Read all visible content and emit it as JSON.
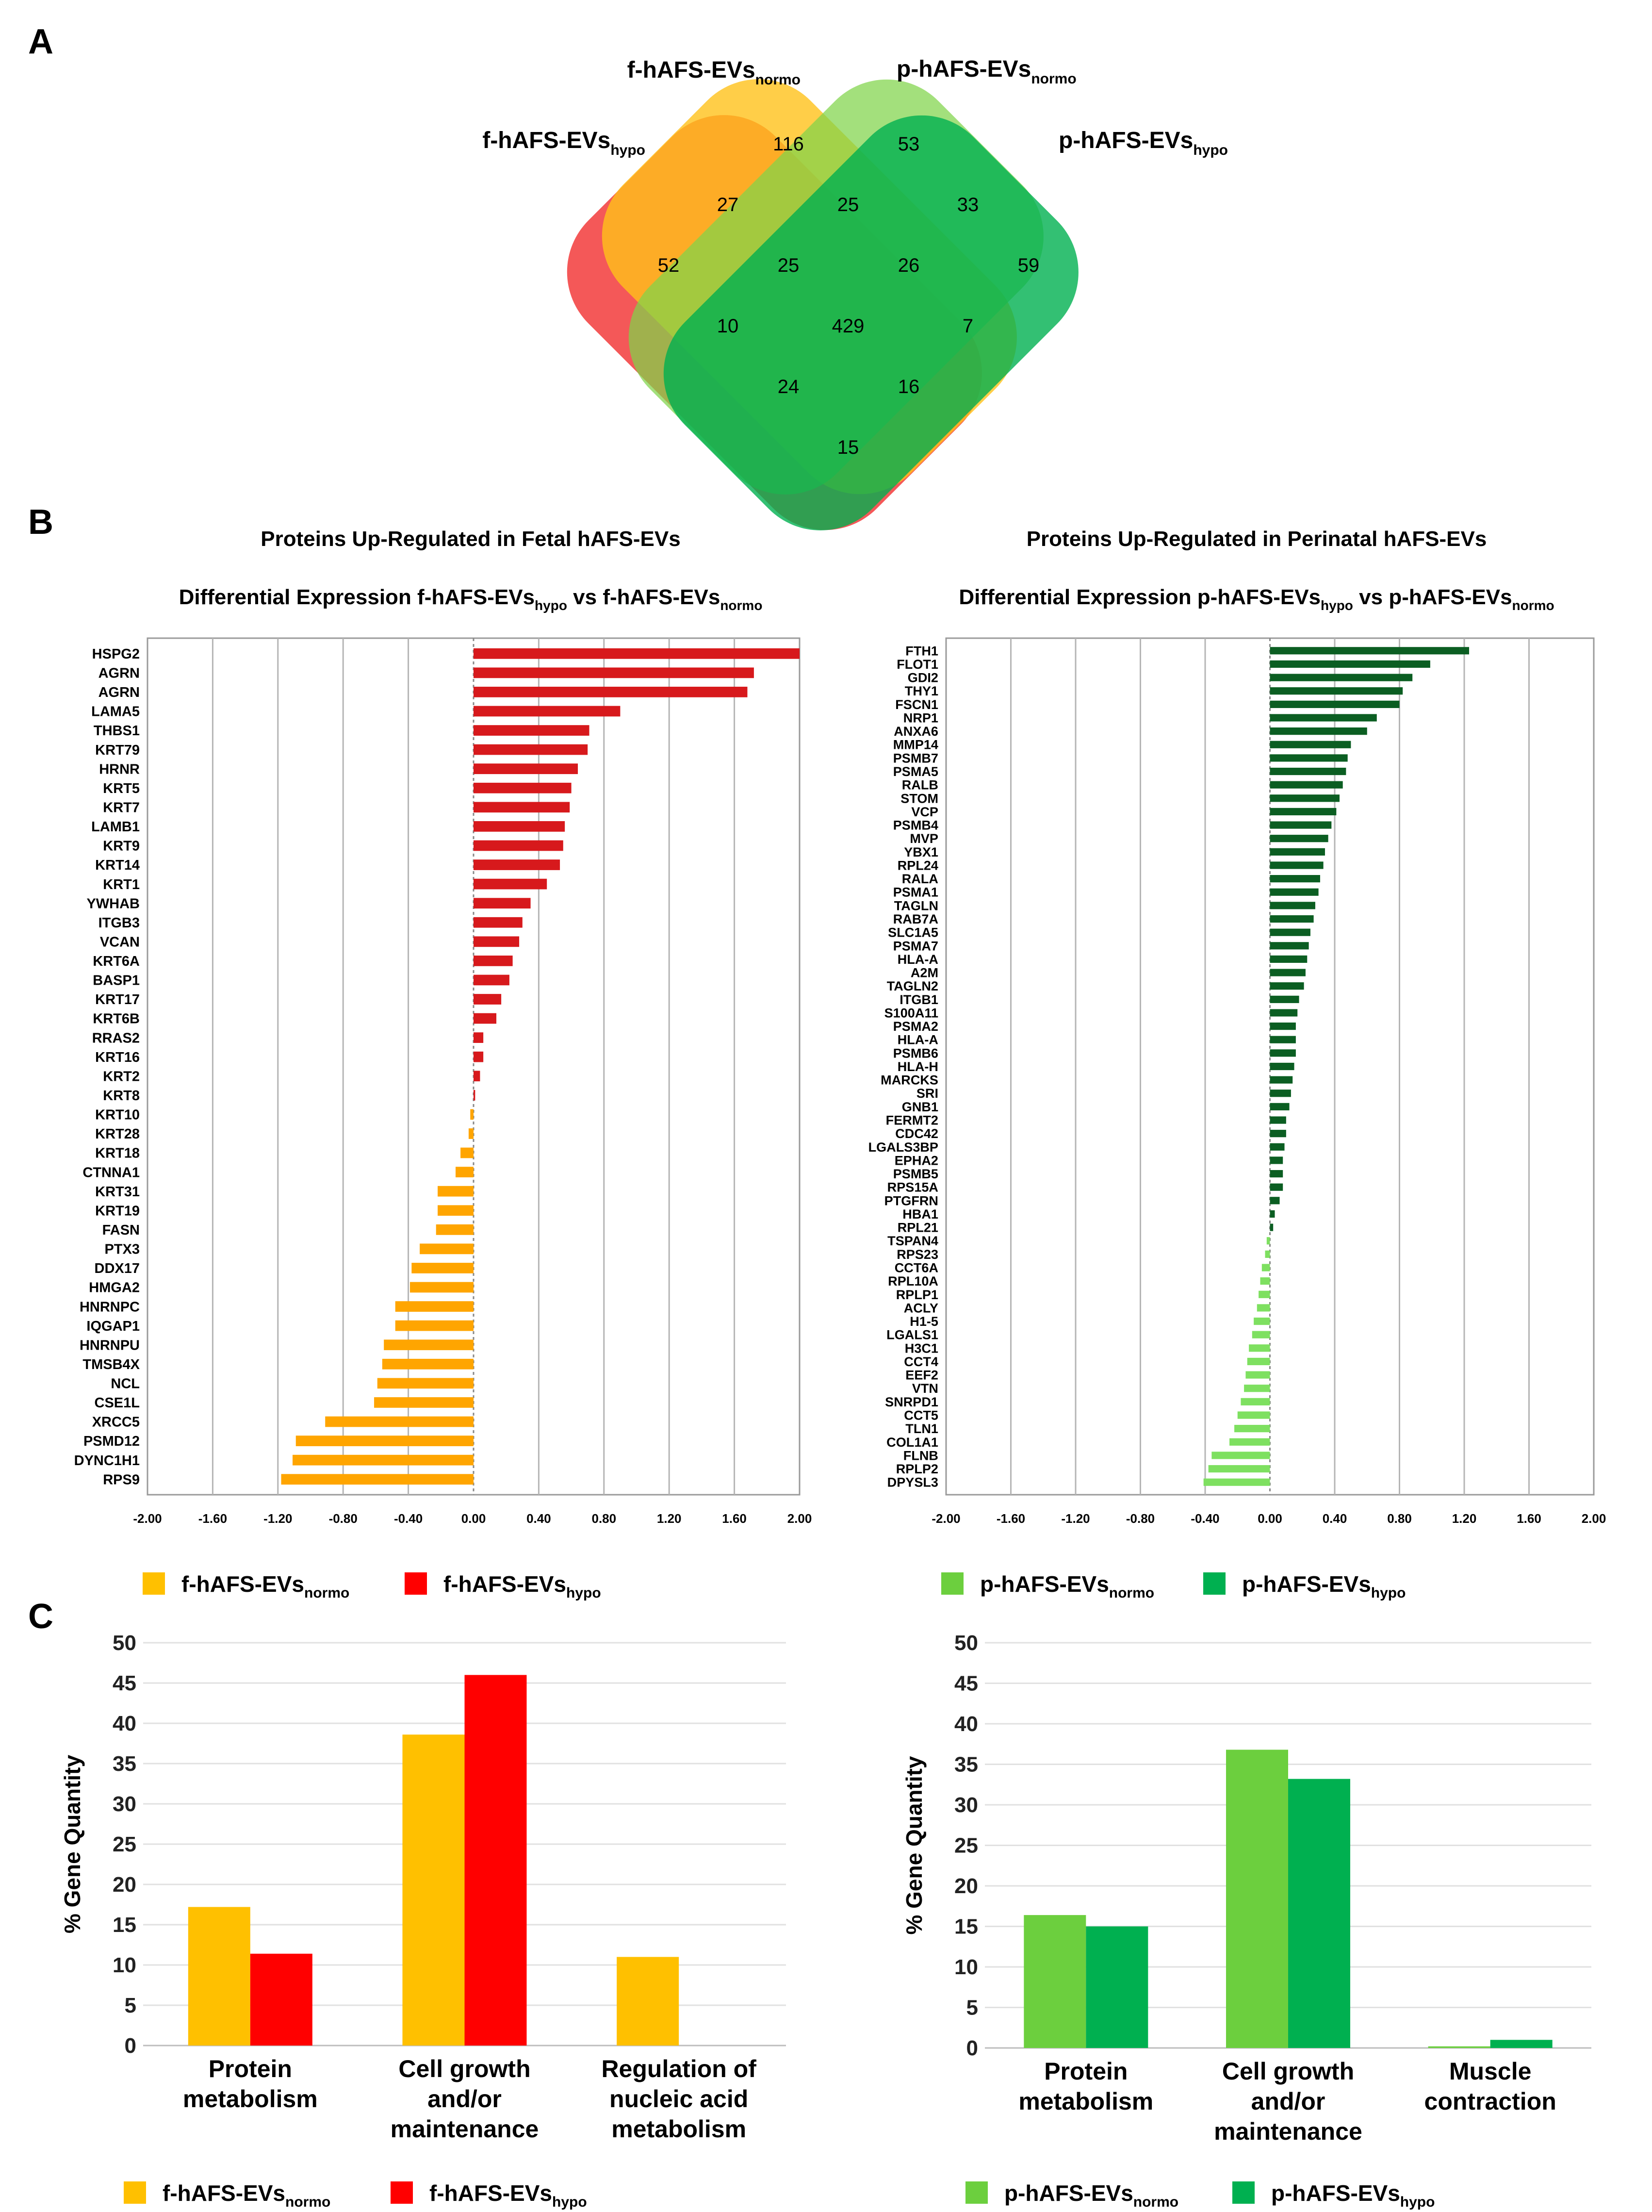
{
  "panels": {
    "a": "A",
    "b": "B",
    "c": "C"
  },
  "venn": {
    "labels": [
      {
        "id": "f-hypo",
        "main": "f-hAFS-EVs",
        "sub": "hypo"
      },
      {
        "id": "f-normo",
        "main": "f-hAFS-EVs",
        "sub": "normo"
      },
      {
        "id": "p-normo",
        "main": "p-hAFS-EVs",
        "sub": "normo"
      },
      {
        "id": "p-hypo",
        "main": "p-hAFS-EVs",
        "sub": "hypo"
      }
    ],
    "colors": {
      "f-hypo": "#f23b3b",
      "f-normo": "#ffc21a",
      "p-normo": "#7fd44a",
      "p-hypo": "#00b050"
    },
    "region_counts": [
      "116",
      "53",
      "52",
      "27",
      "25",
      "33",
      "59",
      "25",
      "26",
      "10",
      "429",
      "7",
      "24",
      "16",
      "15"
    ]
  },
  "chart_data": [
    {
      "type": "bar",
      "orientation": "horizontal",
      "title": "Proteins Up-Regulated in Fetal hAFS-EVs",
      "subtitle": {
        "main1": "Differential Expression f-hAFS-EVs",
        "sub1": "hypo",
        "mid": " vs f-hAFS-EVs",
        "sub2": "normo"
      },
      "categories": [
        "HSPG2",
        "AGRN",
        "AGRN",
        "LAMA5",
        "THBS1",
        "KRT79",
        "HRNR",
        "KRT5",
        "KRT7",
        "LAMB1",
        "KRT9",
        "KRT14",
        "KRT1",
        "YWHAB",
        "ITGB3",
        "VCAN",
        "KRT6A",
        "BASP1",
        "KRT17",
        "KRT6B",
        "RRAS2",
        "KRT16",
        "KRT2",
        "KRT8",
        "KRT10",
        "KRT28",
        "KRT18",
        "CTNNA1",
        "KRT31",
        "KRT19",
        "FASN",
        "PTX3",
        "DDX17",
        "HMGA2",
        "HNRNPC",
        "IQGAP1",
        "HNRNPU",
        "TMSB4X",
        "NCL",
        "CSE1L",
        "XRCC5",
        "PSMD12",
        "DYNC1H1",
        "RPS9"
      ],
      "values": [
        2.0,
        1.72,
        1.68,
        0.9,
        0.71,
        0.7,
        0.64,
        0.6,
        0.59,
        0.56,
        0.55,
        0.53,
        0.45,
        0.35,
        0.3,
        0.28,
        0.24,
        0.22,
        0.17,
        0.14,
        0.06,
        0.06,
        0.04,
        0.01,
        -0.02,
        -0.03,
        -0.08,
        -0.11,
        -0.22,
        -0.22,
        -0.23,
        -0.33,
        -0.38,
        -0.39,
        -0.48,
        -0.48,
        -0.55,
        -0.56,
        -0.59,
        -0.61,
        -0.91,
        -1.09,
        -1.11,
        -1.18
      ],
      "positive_color": "#d7191c",
      "negative_color": "#ffa500",
      "xlim": [
        -2.0,
        2.0
      ],
      "xticks": [
        "-2.00",
        "-1.60",
        "-1.20",
        "-0.80",
        "-0.40",
        "0.00",
        "0.40",
        "0.80",
        "1.20",
        "1.60",
        "2.00"
      ],
      "legend": [
        {
          "main": "f-hAFS-EVs",
          "sub": "normo",
          "color": "#ffc000"
        },
        {
          "main": "f-hAFS-EVs",
          "sub": "hypo",
          "color": "#ff0000"
        }
      ]
    },
    {
      "type": "bar",
      "orientation": "horizontal",
      "title": "Proteins Up-Regulated in Perinatal hAFS-EVs",
      "subtitle": {
        "main1": "Differential Expression p-hAFS-EVs",
        "sub1": "hypo",
        "mid": " vs p-hAFS-EVs",
        "sub2": "normo"
      },
      "categories": [
        "FTH1",
        "FLOT1",
        "GDI2",
        "THY1",
        "FSCN1",
        "NRP1",
        "ANXA6",
        "MMP14",
        "PSMB7",
        "PSMA5",
        "RALB",
        "STOM",
        "VCP",
        "PSMB4",
        "MVP",
        "YBX1",
        "RPL24",
        "RALA",
        "PSMA1",
        "TAGLN",
        "RAB7A",
        "SLC1A5",
        "PSMA7",
        "HLA-A",
        "A2M",
        "TAGLN2",
        "ITGB1",
        "S100A11",
        "PSMA2",
        "HLA-A",
        "PSMB6",
        "HLA-H",
        "MARCKS",
        "SRI",
        "GNB1",
        "FERMT2",
        "CDC42",
        "LGALS3BP",
        "EPHA2",
        "PSMB5",
        "RPS15A",
        "PTGFRN",
        "HBA1",
        "RPL21",
        "TSPAN4",
        "RPS23",
        "CCT6A",
        "RPL10A",
        "RPLP1",
        "ACLY",
        "H1-5",
        "LGALS1",
        "H3C1",
        "CCT4",
        "EEF2",
        "VTN",
        "SNRPD1",
        "CCT5",
        "TLN1",
        "COL1A1",
        "FLNB",
        "RPLP2",
        "DPYSL3"
      ],
      "values": [
        1.23,
        0.99,
        0.88,
        0.82,
        0.8,
        0.66,
        0.6,
        0.5,
        0.48,
        0.47,
        0.45,
        0.43,
        0.41,
        0.38,
        0.36,
        0.34,
        0.33,
        0.31,
        0.3,
        0.28,
        0.27,
        0.25,
        0.24,
        0.23,
        0.22,
        0.21,
        0.18,
        0.17,
        0.16,
        0.16,
        0.16,
        0.15,
        0.14,
        0.13,
        0.12,
        0.1,
        0.1,
        0.09,
        0.08,
        0.08,
        0.08,
        0.06,
        0.03,
        0.02,
        -0.02,
        -0.03,
        -0.05,
        -0.06,
        -0.07,
        -0.08,
        -0.1,
        -0.11,
        -0.13,
        -0.14,
        -0.15,
        -0.16,
        -0.18,
        -0.2,
        -0.22,
        -0.25,
        -0.36,
        -0.38,
        -0.41
      ],
      "positive_color": "#0b5e22",
      "negative_color": "#7ee060",
      "xlim": [
        -2.0,
        2.0
      ],
      "xticks": [
        "-2.00",
        "-1.60",
        "-1.20",
        "-0.80",
        "-0.40",
        "0.00",
        "0.40",
        "0.80",
        "1.20",
        "1.60",
        "2.00"
      ],
      "legend": [
        {
          "main": "p-hAFS-EVs",
          "sub": "normo",
          "color": "#6ccf3e"
        },
        {
          "main": "p-hAFS-EVs",
          "sub": "hypo",
          "color": "#00b050"
        }
      ]
    },
    {
      "type": "bar",
      "ylabel": "% Gene Quantity",
      "ylim": [
        0,
        50
      ],
      "yticks": [
        "0",
        "5",
        "10",
        "15",
        "20",
        "25",
        "30",
        "35",
        "40",
        "45",
        "50"
      ],
      "categories": [
        [
          "Protein",
          "metabolism"
        ],
        [
          "Cell growth",
          "and/or",
          "maintenance"
        ],
        [
          "Regulation of",
          "nucleic acid",
          "metabolism"
        ]
      ],
      "series": [
        {
          "name": "f-hAFS-EVs normo",
          "color": "#ffc000",
          "values": [
            17.2,
            38.6,
            11.0
          ]
        },
        {
          "name": "f-hAFS-EVs hypo",
          "color": "#ff0000",
          "values": [
            11.4,
            46.0,
            0
          ]
        }
      ],
      "legend": [
        {
          "main": "f-hAFS-EVs",
          "sub": "normo",
          "color": "#ffc000"
        },
        {
          "main": "f-hAFS-EVs",
          "sub": "hypo",
          "color": "#ff0000"
        }
      ]
    },
    {
      "type": "bar",
      "ylabel": "% Gene Quantity",
      "ylim": [
        0,
        50
      ],
      "yticks": [
        "0",
        "5",
        "10",
        "15",
        "20",
        "25",
        "30",
        "35",
        "40",
        "45",
        "50"
      ],
      "categories": [
        [
          "Protein",
          "metabolism"
        ],
        [
          "Cell growth",
          "and/or",
          "maintenance"
        ],
        [
          "Muscle",
          "contraction"
        ]
      ],
      "series": [
        {
          "name": "p-hAFS-EVs normo",
          "color": "#6ccf3e",
          "values": [
            16.4,
            36.8,
            0.2
          ]
        },
        {
          "name": "p-hAFS-EVs hypo",
          "color": "#00b050",
          "values": [
            15.0,
            33.2,
            1.0
          ]
        }
      ],
      "legend": [
        {
          "main": "p-hAFS-EVs",
          "sub": "normo",
          "color": "#6ccf3e"
        },
        {
          "main": "p-hAFS-EVs",
          "sub": "hypo",
          "color": "#00b050"
        }
      ]
    }
  ]
}
